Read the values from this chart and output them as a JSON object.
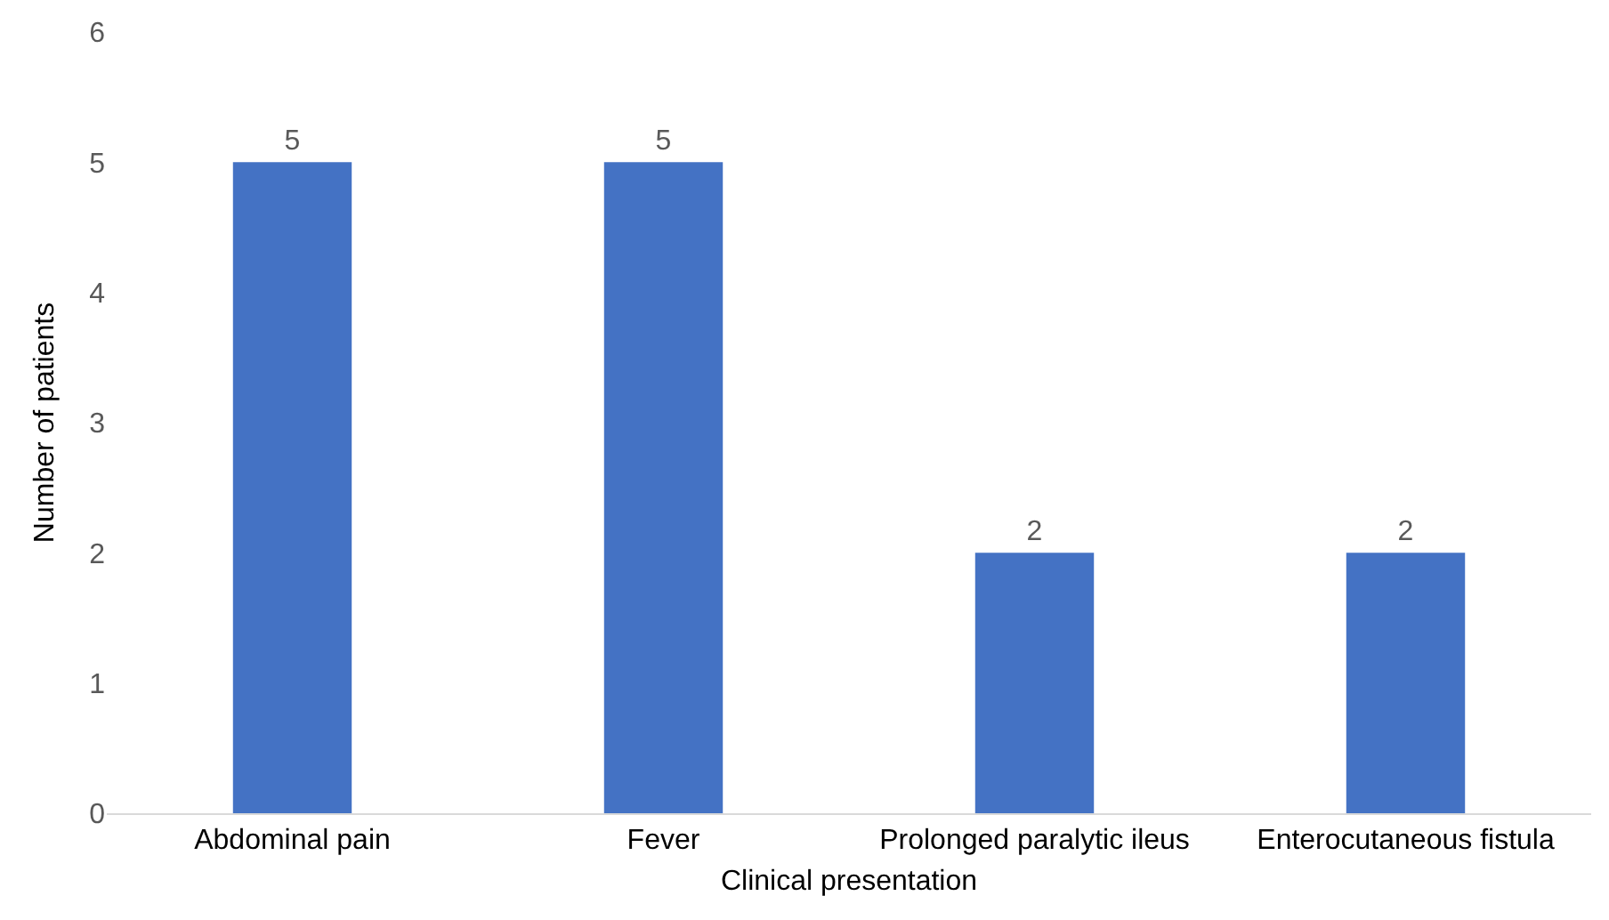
{
  "chart_data": {
    "type": "bar",
    "xlabel": "Clinical presentation",
    "ylabel": "Number of patients",
    "categories": [
      "Abdominal pain",
      "Fever",
      "Prolonged paralytic ileus",
      "Enterocutaneous fistula"
    ],
    "values": [
      5,
      5,
      2,
      2
    ],
    "color": "#4472c4",
    "ylim": [
      0,
      6
    ],
    "yticks": [
      0,
      1,
      2,
      3,
      4,
      5,
      6
    ],
    "data_labels": true
  }
}
